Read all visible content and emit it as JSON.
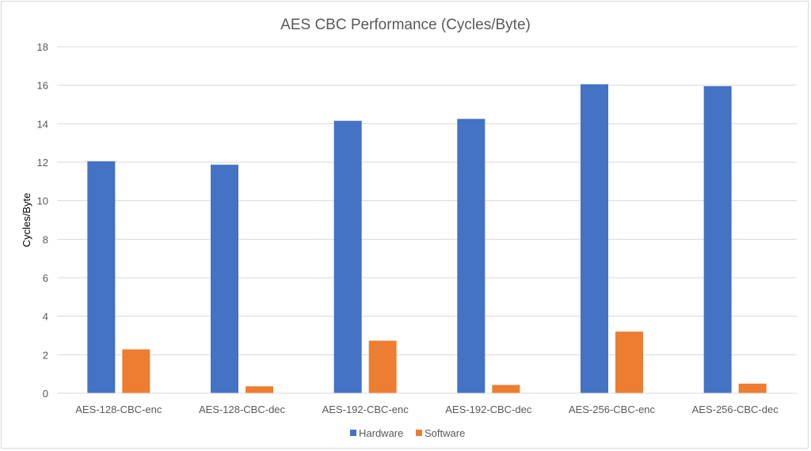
{
  "chart_data": {
    "type": "bar",
    "title": "AES CBC Performance  (Cycles/Byte)",
    "xlabel": "",
    "ylabel": "Cycles/Byte",
    "categories": [
      "AES-128-CBC-enc",
      "AES-128-CBC-dec",
      "AES-192-CBC-enc",
      "AES-192-CBC-dec",
      "AES-256-CBC-enc",
      "AES-256-CBC-dec"
    ],
    "series": [
      {
        "name": "Hardware",
        "color": "#4472c4",
        "values": [
          12.05,
          11.87,
          14.15,
          14.25,
          16.05,
          15.95
        ]
      },
      {
        "name": "Software",
        "color": "#ed7d31",
        "values": [
          2.28,
          0.36,
          2.73,
          0.43,
          3.2,
          0.5
        ]
      }
    ],
    "ylim": [
      0,
      18
    ],
    "yticks": [
      "0",
      "2",
      "4",
      "6",
      "8",
      "10",
      "12",
      "14",
      "16",
      "18"
    ],
    "grid": true,
    "legend_position": "bottom"
  }
}
